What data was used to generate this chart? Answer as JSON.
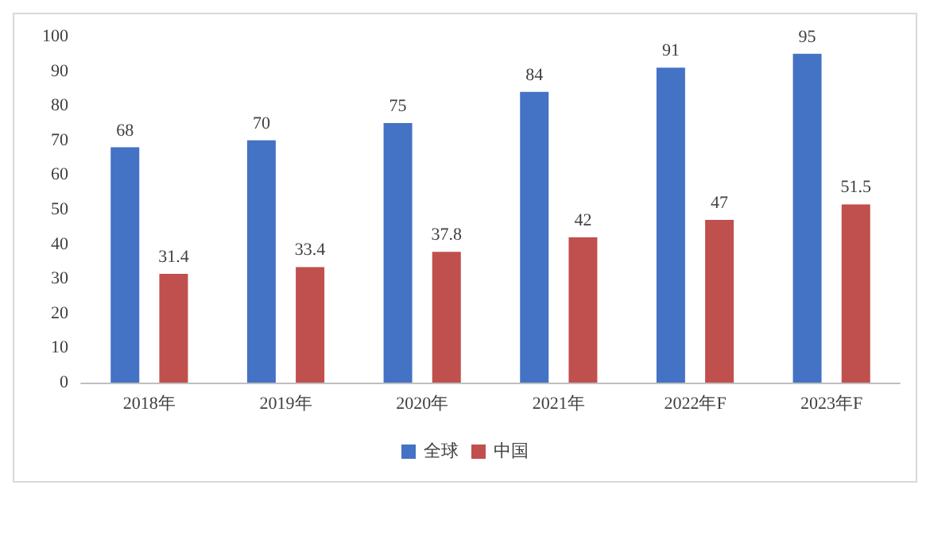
{
  "chart_data": {
    "type": "bar",
    "categories": [
      "2018年",
      "2019年",
      "2020年",
      "2021年",
      "2022年F",
      "2023年F"
    ],
    "series": [
      {
        "name": "全球",
        "color": "#4472c4",
        "values": [
          68,
          70,
          75,
          84,
          91,
          95
        ]
      },
      {
        "name": "中国",
        "color": "#c0504d",
        "values": [
          31.4,
          33.4,
          37.8,
          42,
          47,
          51.5
        ]
      }
    ],
    "ylim": [
      0,
      100
    ],
    "yticks": [
      0,
      10,
      20,
      30,
      40,
      50,
      60,
      70,
      80,
      90,
      100
    ],
    "grid": false,
    "legend": "bottom",
    "data_labels": true
  }
}
